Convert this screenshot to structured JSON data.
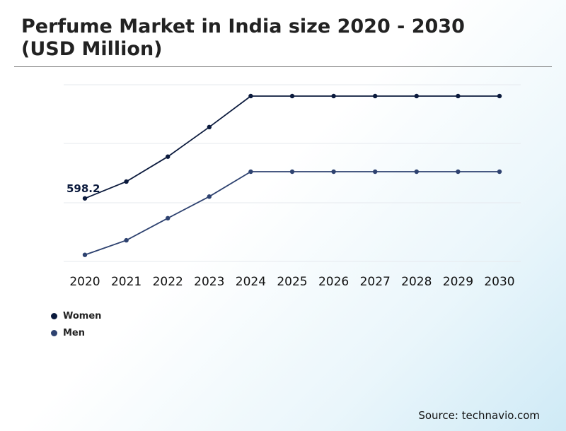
{
  "chart_data": {
    "type": "line",
    "title": "Perfume Market in India size 2020 - 2030\n(USD Million)",
    "x": [
      "2020",
      "2021",
      "2022",
      "2023",
      "2024",
      "2025",
      "2026",
      "2027",
      "2028",
      "2029",
      "2030"
    ],
    "series": [
      {
        "name": "Women",
        "color": "#0b1a3d",
        "values": [
          598.2,
          634,
          687,
          750,
          816,
          816,
          816,
          816,
          816,
          816,
          816
        ]
      },
      {
        "name": "Men",
        "color": "#2e4270",
        "values": [
          478,
          509,
          556,
          602,
          655,
          655,
          655,
          655,
          655,
          655,
          655
        ]
      }
    ],
    "data_labels": [
      {
        "series": 0,
        "index": 0,
        "text": "598.2"
      }
    ],
    "ylim": [
      464,
      840
    ],
    "grid": true,
    "legend_position": "bottom-left",
    "source": "Source: technavio.com"
  }
}
